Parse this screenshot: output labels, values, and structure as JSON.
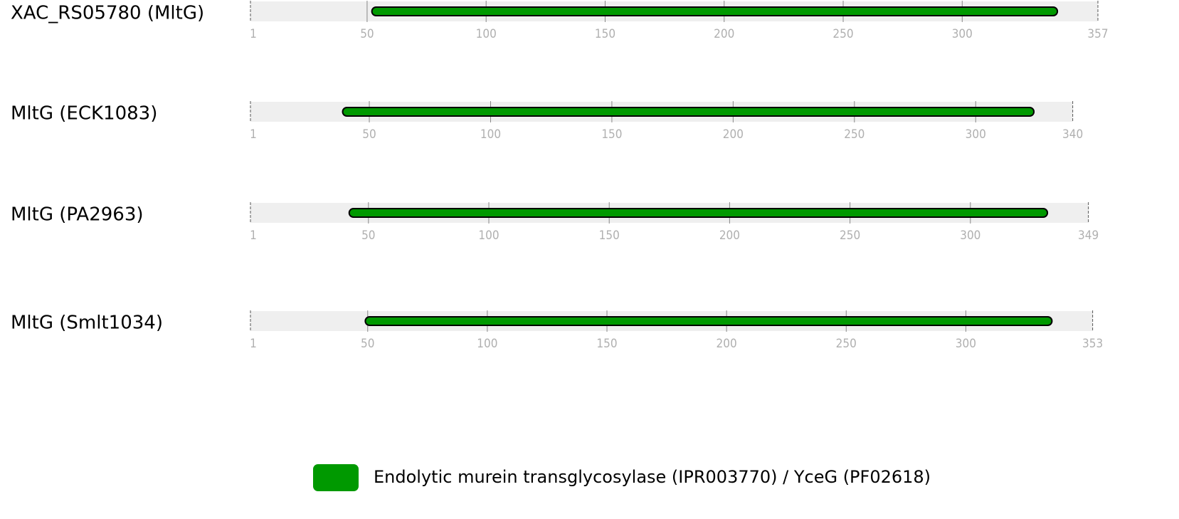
{
  "proteins": [
    {
      "name": "XAC_RS05780 (MltG)",
      "length": 357,
      "ticks": [
        1,
        50,
        100,
        150,
        200,
        250,
        300,
        357
      ],
      "domain": {
        "start": 52,
        "end": 340
      }
    },
    {
      "name": "MltG (ECK1083)",
      "length": 340,
      "ticks": [
        1,
        50,
        100,
        150,
        200,
        250,
        300,
        340
      ],
      "domain": {
        "start": 39,
        "end": 324
      }
    },
    {
      "name": "MltG (PA2963)",
      "length": 349,
      "ticks": [
        1,
        50,
        100,
        150,
        200,
        250,
        300,
        349
      ],
      "domain": {
        "start": 42,
        "end": 332
      }
    },
    {
      "name": "MltG (Smlt1034)",
      "length": 353,
      "ticks": [
        1,
        50,
        100,
        150,
        200,
        250,
        300,
        353
      ],
      "domain": {
        "start": 49,
        "end": 336
      }
    }
  ],
  "legend": {
    "label": "Endolytic murein transglycosylase (IPR003770) / YceG (PF02618)",
    "color": "#009900"
  }
}
